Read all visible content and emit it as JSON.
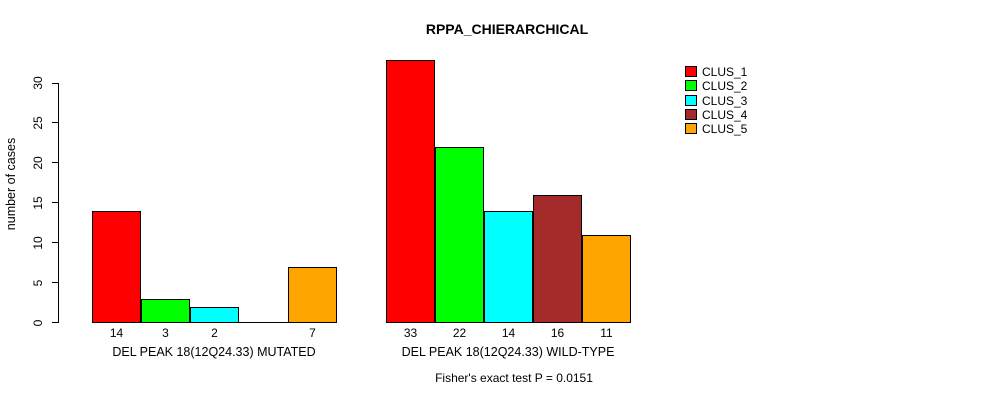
{
  "chart_data": {
    "type": "bar",
    "title": "RPPA_CHIERARCHICAL",
    "ylabel": "number of cases",
    "xlabel": "",
    "ylim": [
      0,
      33
    ],
    "yticks": [
      0,
      5,
      10,
      15,
      20,
      25,
      30
    ],
    "grid": false,
    "legend_position": "top-right",
    "series_names": [
      "CLUS_1",
      "CLUS_2",
      "CLUS_3",
      "CLUS_4",
      "CLUS_5"
    ],
    "colors": [
      "#ff0000",
      "#00ff00",
      "#00ffff",
      "#a52a2a",
      "#ffa500"
    ],
    "groups": [
      {
        "label": "DEL PEAK 18(12Q24.33) MUTATED",
        "values": [
          14,
          3,
          2,
          0,
          7
        ],
        "value_labels": [
          "14",
          "3",
          "2",
          "",
          "7"
        ]
      },
      {
        "label": "DEL PEAK 18(12Q24.33) WILD-TYPE",
        "values": [
          33,
          22,
          14,
          16,
          11
        ],
        "value_labels": [
          "33",
          "22",
          "14",
          "16",
          "11"
        ]
      }
    ],
    "annotation": "Fisher's exact test P = 0.0151"
  }
}
